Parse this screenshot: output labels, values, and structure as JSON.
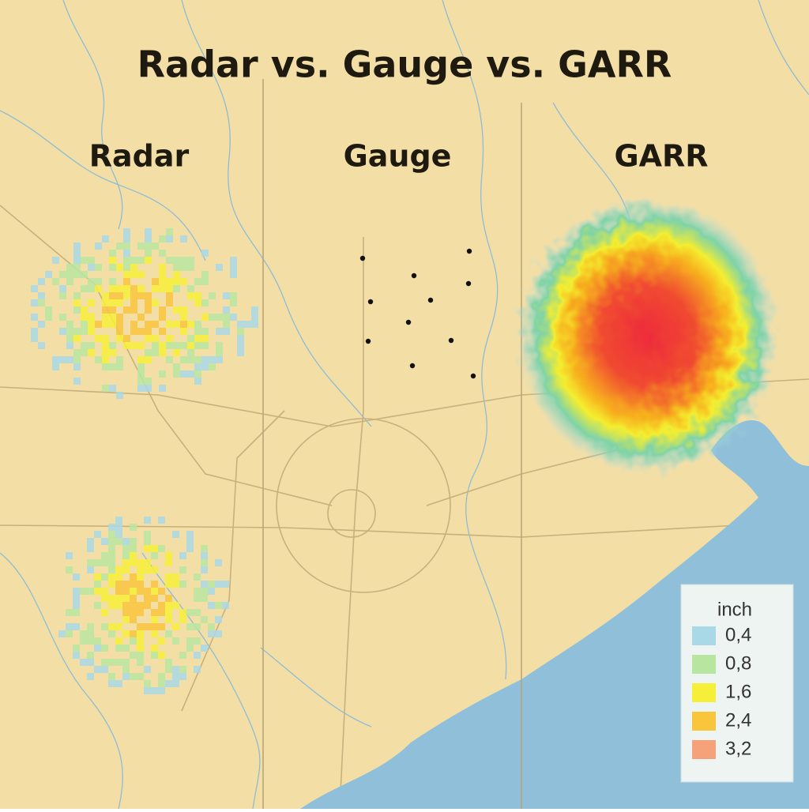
{
  "title": "Radar vs. Gauge vs. GARR",
  "panels": [
    {
      "label": "Radar"
    },
    {
      "label": "Gauge"
    },
    {
      "label": "GARR"
    }
  ],
  "legend": {
    "unit": "inch",
    "items": [
      {
        "label": "0,4",
        "color": "#a9d9e6"
      },
      {
        "label": "0,8",
        "color": "#b8e6a0"
      },
      {
        "label": "1,6",
        "color": "#f6ef3a"
      },
      {
        "label": "2,4",
        "color": "#f8c53c"
      },
      {
        "label": "3,2",
        "color": "#f5a27a"
      }
    ]
  }
}
